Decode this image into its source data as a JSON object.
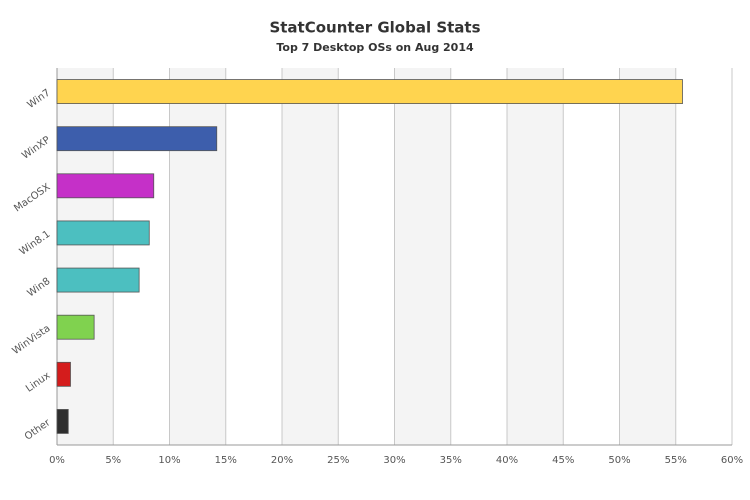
{
  "chart_data": {
    "type": "hbar",
    "title": "StatCounter Global Stats",
    "subtitle": "Top 7 Desktop OSs on Aug 2014",
    "categories": [
      "Win7",
      "WinXP",
      "MacOSX",
      "Win8.1",
      "Win8",
      "WinVista",
      "Linux",
      "Other"
    ],
    "values": [
      55.6,
      14.2,
      8.6,
      8.2,
      7.3,
      3.3,
      1.2,
      1.0
    ],
    "colors": [
      "#ffd44f",
      "#3d5eac",
      "#c530c8",
      "#4cbfc0",
      "#4cbfc0",
      "#80d24f",
      "#d41c1c",
      "#2e2e2e"
    ],
    "xlim": [
      0,
      60
    ],
    "xticks": [
      {
        "value": 0,
        "label": "0%"
      },
      {
        "value": 5,
        "label": "5%"
      },
      {
        "value": 10,
        "label": "10%"
      },
      {
        "value": 15,
        "label": "15%"
      },
      {
        "value": 20,
        "label": "20%"
      },
      {
        "value": 25,
        "label": "25%"
      },
      {
        "value": 30,
        "label": "30%"
      },
      {
        "value": 35,
        "label": "35%"
      },
      {
        "value": 40,
        "label": "40%"
      },
      {
        "value": 45,
        "label": "45%"
      },
      {
        "value": 50,
        "label": "50%"
      },
      {
        "value": 55,
        "label": "55%"
      },
      {
        "value": 60,
        "label": "60%"
      }
    ],
    "grid": true
  }
}
